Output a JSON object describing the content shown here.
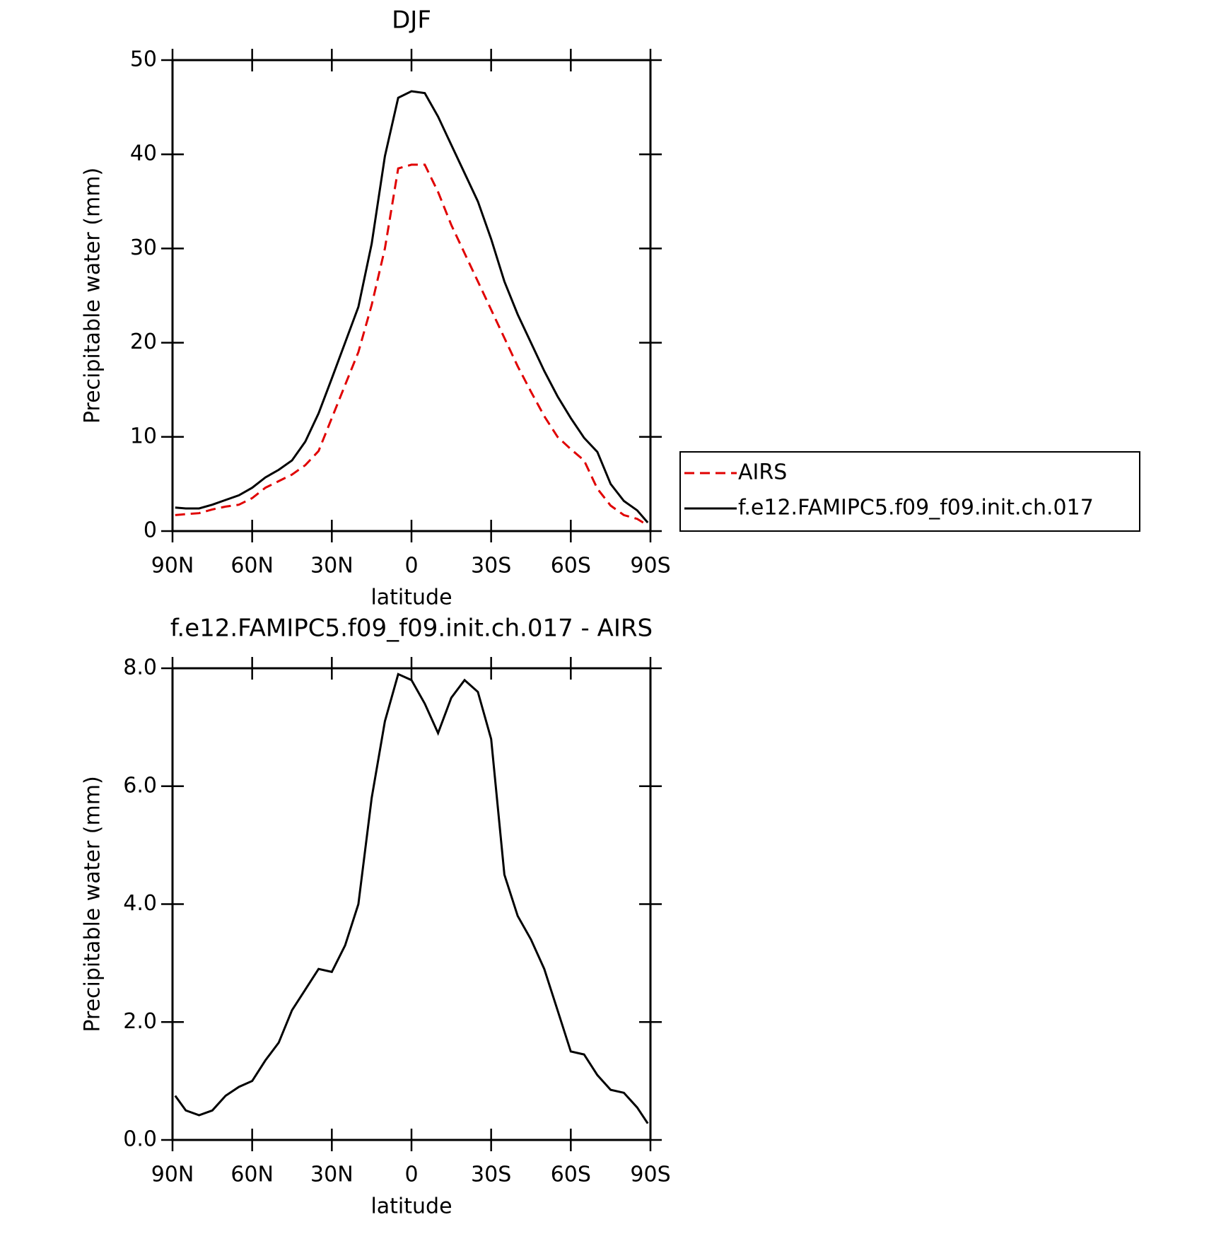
{
  "chart_data": [
    {
      "type": "line",
      "title": "DJF",
      "xlabel": "latitude",
      "ylabel": "Precipitable water (mm)",
      "x": [
        89,
        85,
        80,
        75,
        70,
        65,
        60,
        55,
        50,
        45,
        40,
        35,
        30,
        25,
        20,
        15,
        10,
        5,
        0,
        -5,
        -10,
        -15,
        -20,
        -25,
        -30,
        -35,
        -40,
        -45,
        -50,
        -55,
        -60,
        -65,
        -70,
        -75,
        -80,
        -85,
        -89
      ],
      "xlim": [
        90,
        -90
      ],
      "xticks": [
        {
          "value": 90,
          "label": "90N"
        },
        {
          "value": 60,
          "label": "60N"
        },
        {
          "value": 30,
          "label": "30N"
        },
        0,
        {
          "value": -30,
          "label": "30S"
        },
        {
          "value": -60,
          "label": "60S"
        },
        {
          "value": -90,
          "label": "90S"
        }
      ],
      "ylim": [
        0,
        50
      ],
      "yticks": [
        0,
        10,
        20,
        30,
        40,
        50
      ],
      "legend": "right",
      "series": [
        {
          "name": "AIRS",
          "color": "#e00000",
          "linestyle": "dashed",
          "values": [
            1.7,
            1.8,
            1.9,
            2.3,
            2.6,
            2.8,
            3.5,
            4.6,
            5.3,
            6.0,
            7.0,
            8.5,
            12,
            15.5,
            19,
            24,
            30,
            38.5,
            38.9,
            38.9,
            36,
            32.5,
            29.5,
            26.5,
            23.5,
            20.5,
            17.5,
            14.8,
            12.2,
            10,
            8.7,
            7.5,
            4.5,
            2.7,
            1.7,
            1.3,
            0.6
          ]
        },
        {
          "name": "f.e12.FAMIPC5.f09_f09.init.ch.017",
          "color": "#000000",
          "linestyle": "solid",
          "values": [
            2.5,
            2.4,
            2.4,
            2.8,
            3.3,
            3.8,
            4.6,
            5.7,
            6.5,
            7.5,
            9.5,
            12.5,
            16.2,
            20,
            23.8,
            30.5,
            39.8,
            46,
            46.7,
            46.5,
            44,
            41,
            38,
            35,
            31,
            26.5,
            23,
            20,
            17,
            14.3,
            12,
            9.9,
            8.4,
            5,
            3.2,
            2.2,
            0.9
          ]
        }
      ]
    },
    {
      "type": "line",
      "title": "f.e12.FAMIPC5.f09_f09.init.ch.017 - AIRS",
      "xlabel": "latitude",
      "ylabel": "Precipitable water (mm)",
      "x": [
        89,
        85,
        80,
        75,
        70,
        65,
        60,
        55,
        50,
        45,
        40,
        35,
        30,
        25,
        20,
        15,
        10,
        5,
        0,
        -5,
        -10,
        -15,
        -20,
        -25,
        -30,
        -35,
        -40,
        -45,
        -50,
        -55,
        -60,
        -65,
        -70,
        -75,
        -80,
        -85,
        -89
      ],
      "xlim": [
        90,
        -90
      ],
      "xticks": [
        {
          "value": 90,
          "label": "90N"
        },
        {
          "value": 60,
          "label": "60N"
        },
        {
          "value": 30,
          "label": "30N"
        },
        0,
        {
          "value": -30,
          "label": "30S"
        },
        {
          "value": -60,
          "label": "60S"
        },
        {
          "value": -90,
          "label": "90S"
        }
      ],
      "ylim": [
        0,
        8
      ],
      "yticks": [
        {
          "value": 0,
          "label": "0.0"
        },
        {
          "value": 2,
          "label": "2.0"
        },
        {
          "value": 4,
          "label": "4.0"
        },
        {
          "value": 6,
          "label": "6.0"
        },
        {
          "value": 8,
          "label": "8.0"
        }
      ],
      "series": [
        {
          "color": "#000000",
          "linestyle": "solid",
          "values": [
            0.75,
            0.5,
            0.42,
            0.5,
            0.75,
            0.9,
            1.0,
            1.35,
            1.65,
            2.2,
            2.55,
            2.9,
            2.85,
            3.3,
            4.0,
            5.8,
            7.1,
            7.9,
            7.8,
            7.4,
            6.9,
            7.5,
            7.8,
            7.6,
            6.8,
            4.5,
            3.8,
            3.4,
            2.9,
            2.2,
            1.5,
            1.45,
            1.1,
            0.85,
            0.8,
            0.55,
            0.28
          ]
        }
      ]
    }
  ]
}
